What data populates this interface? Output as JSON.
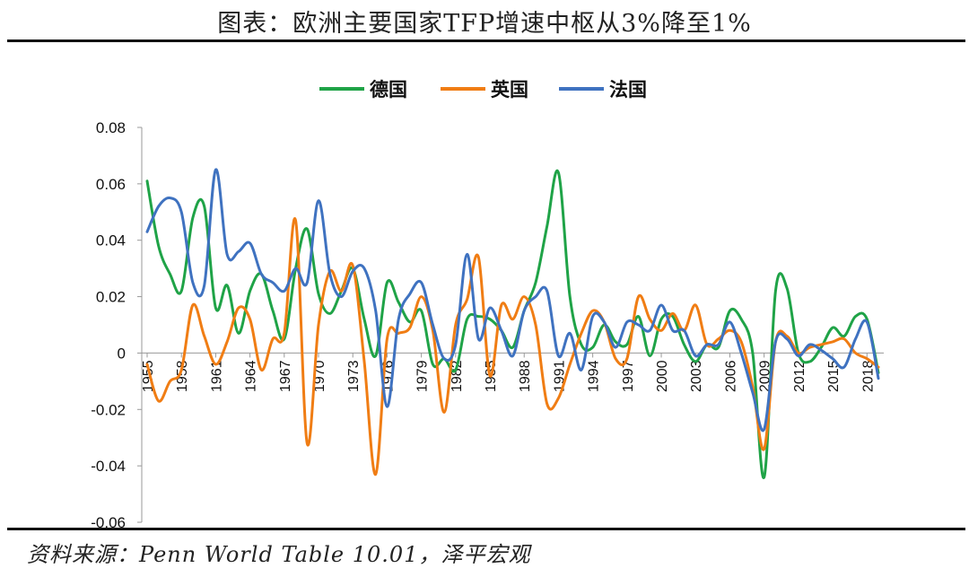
{
  "header": {
    "title": "图表：欧洲主要国家TFP增速中枢从3%降至1%"
  },
  "footer": {
    "source": "资料来源：Penn World Table 10.01，泽平宏观"
  },
  "chart_data": {
    "type": "line",
    "ylim": [
      -0.06,
      0.08
    ],
    "yticks": [
      "0.08",
      "0.06",
      "0.04",
      "0.02",
      "0",
      "-0.02",
      "-0.04",
      "-0.06"
    ],
    "xlim": [
      1955,
      2019
    ],
    "xticks": [
      "1955",
      "1958",
      "1961",
      "1964",
      "1967",
      "1970",
      "1973",
      "1976",
      "1979",
      "1982",
      "1985",
      "1988",
      "1991",
      "1994",
      "1997",
      "2000",
      "2003",
      "2006",
      "2009",
      "2012",
      "2015",
      "2018"
    ],
    "legend_position": "top-center",
    "x": [
      1955,
      1956,
      1957,
      1958,
      1959,
      1960,
      1961,
      1962,
      1963,
      1964,
      1965,
      1966,
      1967,
      1968,
      1969,
      1970,
      1971,
      1972,
      1973,
      1974,
      1975,
      1976,
      1977,
      1978,
      1979,
      1980,
      1981,
      1982,
      1983,
      1984,
      1985,
      1986,
      1987,
      1988,
      1989,
      1990,
      1991,
      1992,
      1993,
      1994,
      1995,
      1996,
      1997,
      1998,
      1999,
      2000,
      2001,
      2002,
      2003,
      2004,
      2005,
      2006,
      2007,
      2008,
      2009,
      2010,
      2011,
      2012,
      2013,
      2014,
      2015,
      2016,
      2017,
      2018,
      2019
    ],
    "series": [
      {
        "name": "德国",
        "color": "#1fa347",
        "values": [
          0.061,
          0.038,
          0.028,
          0.022,
          0.048,
          0.052,
          0.016,
          0.024,
          0.007,
          0.022,
          0.028,
          0.015,
          0.005,
          0.03,
          0.044,
          0.021,
          0.014,
          0.022,
          0.03,
          0.012,
          -0.001,
          0.025,
          0.018,
          0.011,
          0.015,
          -0.004,
          -0.002,
          -0.006,
          0.012,
          0.013,
          0.012,
          0.008,
          0.002,
          0.015,
          0.025,
          0.045,
          0.064,
          0.02,
          0.003,
          0.002,
          0.01,
          0.004,
          0.003,
          0.013,
          -0.001,
          0.012,
          0.013,
          0.003,
          -0.003,
          0.003,
          0.002,
          0.015,
          0.012,
          0.0,
          -0.044,
          0.022,
          0.023,
          0.0,
          -0.003,
          0.002,
          0.009,
          0.006,
          0.013,
          0.012,
          -0.007
        ]
      },
      {
        "name": "英国",
        "color": "#f07d14",
        "values": [
          -0.004,
          -0.017,
          -0.01,
          -0.006,
          0.017,
          0.006,
          -0.004,
          0.004,
          0.016,
          0.012,
          -0.006,
          0.005,
          0.007,
          0.047,
          -0.032,
          0.01,
          0.029,
          0.022,
          0.031,
          -0.003,
          -0.043,
          0.005,
          0.007,
          0.009,
          0.02,
          0.008,
          -0.021,
          0.01,
          0.019,
          0.034,
          -0.008,
          0.017,
          0.012,
          0.02,
          0.01,
          -0.018,
          -0.016,
          -0.004,
          0.007,
          0.015,
          0.011,
          -0.002,
          -0.002,
          0.02,
          0.012,
          0.008,
          0.014,
          0.008,
          0.017,
          0.003,
          0.005,
          0.008,
          0.004,
          -0.012,
          -0.034,
          0.004,
          0.006,
          0.0,
          0.002,
          0.003,
          0.004,
          0.005,
          0.0,
          -0.002,
          -0.005
        ]
      },
      {
        "name": "法国",
        "color": "#3f72c0",
        "values": [
          0.043,
          0.052,
          0.055,
          0.05,
          0.025,
          0.024,
          0.065,
          0.035,
          0.036,
          0.039,
          0.028,
          0.025,
          0.022,
          0.03,
          0.025,
          0.054,
          0.028,
          0.02,
          0.029,
          0.03,
          0.015,
          -0.019,
          0.012,
          0.021,
          0.025,
          0.01,
          -0.002,
          0.003,
          0.035,
          0.005,
          0.016,
          0.008,
          -0.001,
          0.015,
          0.02,
          0.022,
          -0.001,
          0.007,
          -0.006,
          0.013,
          0.011,
          0.002,
          0.011,
          0.01,
          0.008,
          0.017,
          0.008,
          0.008,
          -0.001,
          0.003,
          0.003,
          0.011,
          0.0,
          -0.014,
          -0.027,
          0.004,
          0.005,
          -0.001,
          0.003,
          0.001,
          -0.002,
          -0.005,
          0.005,
          0.011,
          -0.009
        ]
      }
    ]
  }
}
